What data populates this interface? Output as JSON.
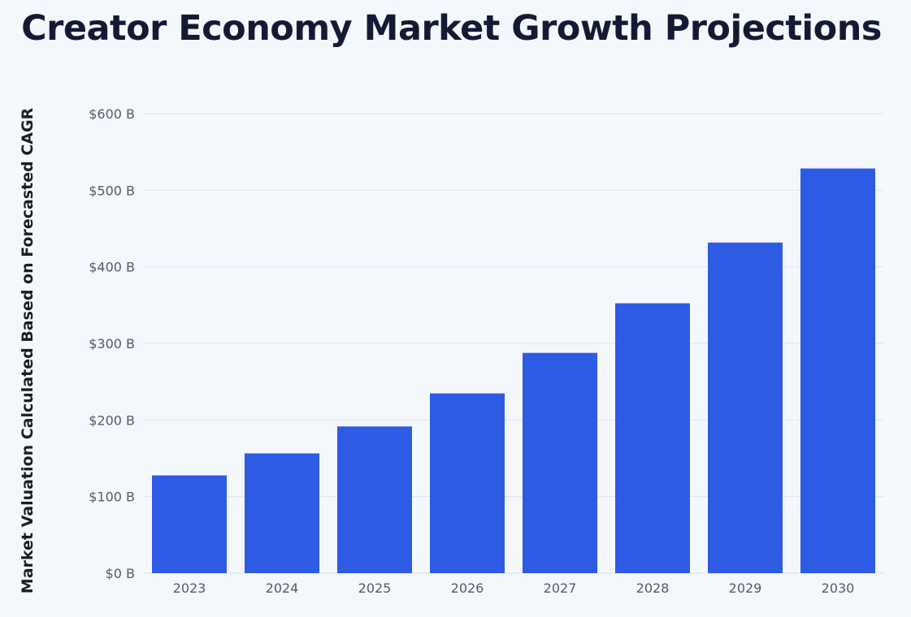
{
  "chart_data": {
    "type": "bar",
    "title": "Creator Economy Market Growth Projections",
    "xlabel": "",
    "ylabel": "Market Valuation Calculated Based on Forecasted CAGR",
    "categories": [
      "2023",
      "2024",
      "2025",
      "2026",
      "2027",
      "2028",
      "2029",
      "2030"
    ],
    "values": [
      127.65,
      156.4,
      191.6,
      234.7,
      287.6,
      352.4,
      431.7,
      528.4
    ],
    "value_unit": "billion USD",
    "ylim": [
      0,
      600
    ],
    "yticks": [
      0,
      100,
      200,
      300,
      400,
      500,
      600
    ],
    "ytick_labels": [
      "$0 B",
      "$100 B",
      "$200 B",
      "$300 B",
      "$400 B",
      "$500 B",
      "$600 B"
    ],
    "grid": true,
    "legend": "none",
    "bar_color": "#2d5be3",
    "grid_color": "#dde5ef"
  }
}
